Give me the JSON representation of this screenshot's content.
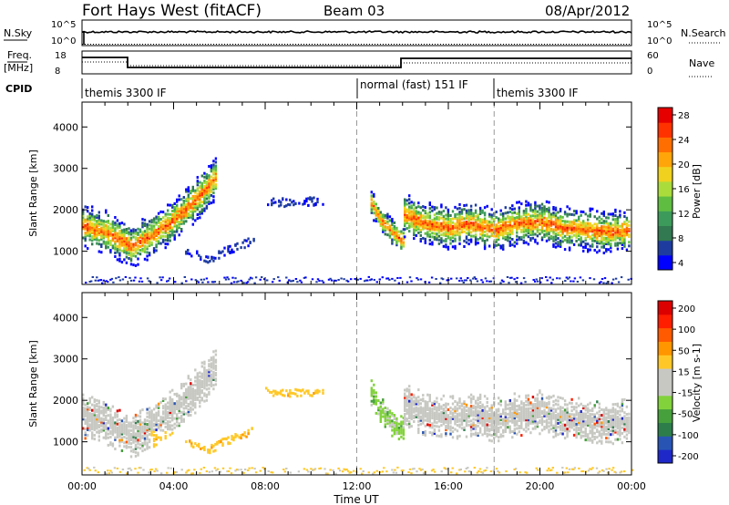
{
  "header": {
    "station": "Fort Hays West (fitACF)",
    "beam": "Beam 03",
    "date": "08/Apr/2012"
  },
  "panels": {
    "nsky_label": "N.Sky",
    "nsky_ticks": [
      "10^5",
      "10^0"
    ],
    "nsearch_label": "N.Search",
    "nsearch_ticks": [
      "10^5",
      "10^0"
    ],
    "freq_label": "Freq.",
    "freq_unit": "[MHz]",
    "freq_ticks": [
      "18",
      "8"
    ],
    "nave_label": "Nave",
    "nave_ticks": [
      "60",
      "0"
    ],
    "cpid_label": "CPID"
  },
  "cpid_segments": [
    {
      "label": "themis 3300 IF",
      "start_h": 0,
      "end_h": 12
    },
    {
      "label": "normal (fast) 151 IF",
      "start_h": 12,
      "end_h": 18
    },
    {
      "label": "themis 3300 IF",
      "start_h": 18,
      "end_h": 24
    }
  ],
  "colorbars": {
    "power": {
      "label": "Power [dB]",
      "ticks": [
        "28",
        "24",
        "20",
        "16",
        "12",
        "8",
        "4"
      ],
      "colors": [
        "#0000ff",
        "#1e3ca0",
        "#327850",
        "#3c9b5a",
        "#5fbe41",
        "#aadc3c",
        "#f0d21e",
        "#ffa50a",
        "#ff6e00",
        "#ff3200",
        "#e60000"
      ]
    },
    "velocity": {
      "label": "Velocity [m s-1]",
      "ticks": [
        "200",
        "100",
        "50",
        "15",
        "-15",
        "-50",
        "-100",
        "-200"
      ],
      "colors": [
        "#1e28c8",
        "#2855b4",
        "#2d7d4b",
        "#46a03c",
        "#82d23c",
        "#c8c8c3",
        "#c8c8c3",
        "#ffc828",
        "#ff9600",
        "#ff5a00",
        "#ff1e00",
        "#dc0000"
      ]
    }
  },
  "chart_data": [
    {
      "type": "heatmap",
      "name": "power",
      "xlabel": "",
      "ylabel": "Slant Range [km]",
      "xlim": [
        0,
        24
      ],
      "ylim": [
        200,
        4600
      ],
      "yticks": [
        "4000",
        "3000",
        "2000",
        "1000"
      ],
      "zlabel": "Power [dB]",
      "bands": [
        {
          "x": [
            0,
            1,
            2,
            2.1,
            3,
            4,
            5,
            5.8
          ],
          "y": [
            1650,
            1500,
            1200,
            1150,
            1400,
            1800,
            2300,
            2800
          ],
          "width": 400
        },
        {
          "x": [
            12.6,
            13,
            13.5,
            14
          ],
          "y": [
            2200,
            1800,
            1500,
            1300
          ],
          "width": 250
        },
        {
          "x": [
            14.05,
            15,
            16,
            17,
            18,
            19,
            20,
            21,
            22,
            23,
            23.9
          ],
          "y": [
            1900,
            1700,
            1600,
            1700,
            1550,
            1700,
            1750,
            1600,
            1550,
            1500,
            1550
          ],
          "width": 400
        }
      ],
      "sparse": [
        {
          "x": [
            4.5,
            5.5,
            6.5,
            7.5
          ],
          "y": [
            1050,
            850,
            1100,
            1300
          ]
        },
        {
          "x": [
            8,
            9,
            10.5
          ],
          "y": [
            2250,
            2200,
            2250
          ]
        }
      ]
    },
    {
      "type": "heatmap",
      "name": "velocity",
      "xlabel": "Time UT",
      "ylabel": "Slant Range [km]",
      "xlim": [
        0,
        24
      ],
      "ylim": [
        200,
        4600
      ],
      "xticks": [
        "00:00",
        "04:00",
        "08:00",
        "12:00",
        "16:00",
        "20:00",
        "00:00"
      ],
      "yticks": [
        "4000",
        "3000",
        "2000",
        "1000"
      ],
      "zlabel": "Velocity [m s-1]"
    }
  ]
}
